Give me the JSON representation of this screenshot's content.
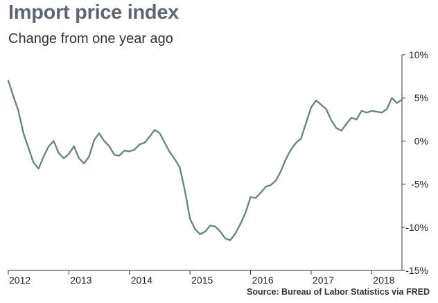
{
  "chart_data": {
    "type": "line",
    "title": "Import price index",
    "subtitle": "Change from one year ago",
    "source": "Source: Bureau of Labor Statistics via FRED",
    "ylim": [
      -15,
      10
    ],
    "xlim": [
      2012.0,
      2018.5
    ],
    "grid": false,
    "y_ticks": [
      {
        "value": 10,
        "label": "10%"
      },
      {
        "value": 5,
        "label": "5%"
      },
      {
        "value": 0,
        "label": "0%"
      },
      {
        "value": -5,
        "label": "-5%"
      },
      {
        "value": -10,
        "label": "-10%"
      },
      {
        "value": -15,
        "label": "-15%"
      }
    ],
    "x_ticks": [
      {
        "value": 2012,
        "label": "2012"
      },
      {
        "value": 2013,
        "label": "2013"
      },
      {
        "value": 2014,
        "label": "2014"
      },
      {
        "value": 2015,
        "label": "2015"
      },
      {
        "value": 2016,
        "label": "2016"
      },
      {
        "value": 2017,
        "label": "2017"
      },
      {
        "value": 2018,
        "label": "2018"
      }
    ],
    "line_color": "#6b8583",
    "series": [
      {
        "x": [
          2012.0,
          2012.083,
          2012.167,
          2012.25,
          2012.333,
          2012.417,
          2012.5,
          2012.583,
          2012.667,
          2012.75,
          2012.833,
          2012.917,
          2013.0,
          2013.083,
          2013.167,
          2013.25,
          2013.333,
          2013.417,
          2013.5,
          2013.583,
          2013.667,
          2013.75,
          2013.833,
          2013.917,
          2014.0,
          2014.083,
          2014.167,
          2014.25,
          2014.333,
          2014.417,
          2014.5,
          2014.583,
          2014.667,
          2014.75,
          2014.833,
          2014.917,
          2015.0,
          2015.083,
          2015.167,
          2015.25,
          2015.333,
          2015.417,
          2015.5,
          2015.583,
          2015.667,
          2015.75,
          2015.833,
          2015.917,
          2016.0,
          2016.083,
          2016.167,
          2016.25,
          2016.333,
          2016.417,
          2016.5,
          2016.583,
          2016.667,
          2016.75,
          2016.833,
          2016.917,
          2017.0,
          2017.083,
          2017.167,
          2017.25,
          2017.333,
          2017.417,
          2017.5,
          2017.583,
          2017.667,
          2017.75,
          2017.833,
          2017.917,
          2018.0,
          2018.083,
          2018.167,
          2018.25,
          2018.333,
          2018.417,
          2018.5
        ],
        "values": [
          7.0,
          5.2,
          3.5,
          0.9,
          -0.8,
          -2.5,
          -3.2,
          -1.8,
          -0.6,
          0.0,
          -1.4,
          -2.0,
          -1.5,
          -0.6,
          -2.0,
          -2.6,
          -1.8,
          0.1,
          0.9,
          0.0,
          -0.6,
          -1.6,
          -1.7,
          -1.1,
          -1.2,
          -1.0,
          -0.4,
          -0.2,
          0.5,
          1.3,
          0.9,
          -0.2,
          -1.3,
          -2.1,
          -3.1,
          -5.8,
          -9.0,
          -10.2,
          -10.8,
          -10.5,
          -9.8,
          -9.9,
          -10.5,
          -11.3,
          -11.5,
          -10.7,
          -9.6,
          -8.3,
          -6.5,
          -6.6,
          -6.0,
          -5.3,
          -5.1,
          -4.6,
          -3.5,
          -2.1,
          -1.0,
          -0.2,
          0.3,
          2.1,
          3.9,
          4.7,
          4.2,
          3.7,
          2.4,
          1.5,
          1.2,
          2.0,
          2.7,
          2.5,
          3.5,
          3.3,
          3.5,
          3.4,
          3.3,
          3.7,
          5.0,
          4.4,
          4.8
        ]
      }
    ]
  }
}
